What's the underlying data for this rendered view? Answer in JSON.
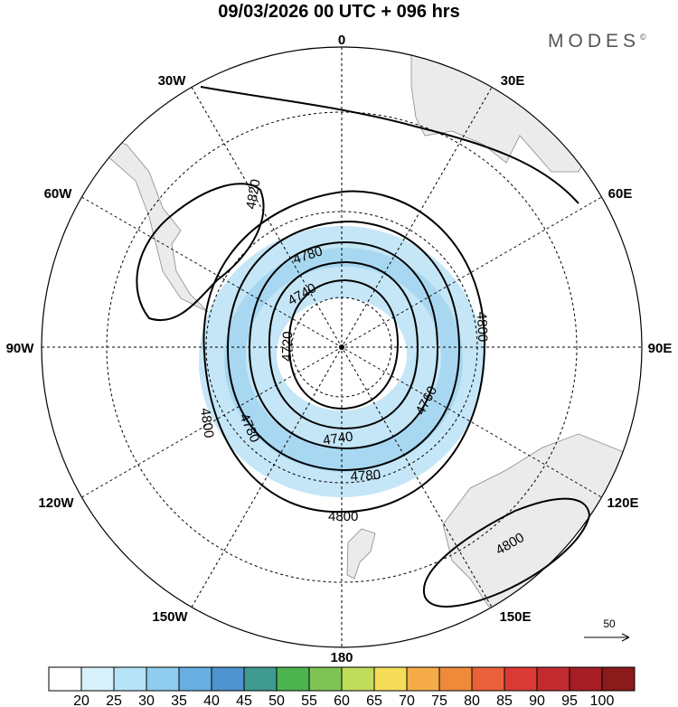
{
  "header": {
    "title": "09/03/2026  00 UTC  + 096 hrs",
    "brand": "MODES",
    "brand_mark": "©"
  },
  "meridians": [
    "0",
    "30E",
    "60E",
    "90E",
    "120E",
    "150E",
    "180",
    "150W",
    "120W",
    "90W",
    "60W",
    "30W"
  ],
  "contour_labels": [
    "4820",
    "4780",
    "4740",
    "4800",
    "4720",
    "4800",
    "4780",
    "4760",
    "4740",
    "4780",
    "4800",
    "4800"
  ],
  "wind_reference": {
    "value": "50"
  },
  "colorbar": {
    "labels": [
      "20",
      "25",
      "30",
      "35",
      "40",
      "45",
      "50",
      "55",
      "60",
      "65",
      "70",
      "75",
      "80",
      "85",
      "90",
      "95",
      "100"
    ],
    "colors": [
      "#ffffff",
      "#d6f1fc",
      "#b6e3f7",
      "#8fcdee",
      "#68aee0",
      "#4f93cf",
      "#3f9a90",
      "#4db34f",
      "#7ec454",
      "#c2dc5c",
      "#f5dd5a",
      "#f5ac48",
      "#ef8a3a",
      "#e8613a",
      "#d93a36",
      "#c12b2f",
      "#a61d24",
      "#8b1a1a"
    ]
  },
  "palette": {
    "land": "#ebebeb",
    "coast": "#8a8a8a",
    "wind_light": "#c5e6f6",
    "wind_mid": "#8fcdee"
  }
}
